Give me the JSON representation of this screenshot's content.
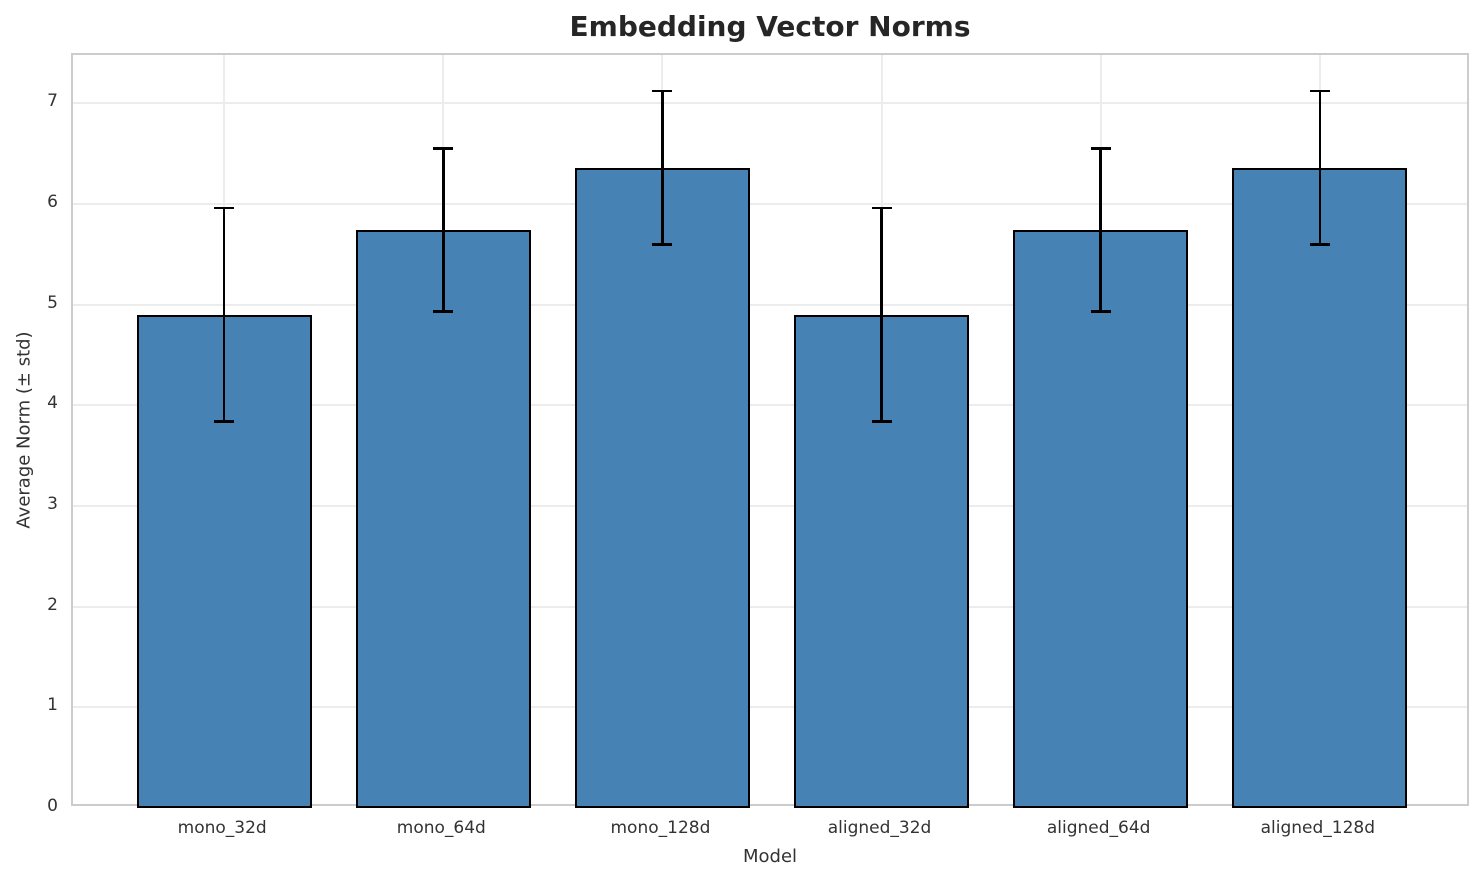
{
  "chart_data": {
    "type": "bar",
    "title": "Embedding Vector Norms",
    "xlabel": "Model",
    "ylabel": "Average Norm (± std)",
    "categories": [
      "mono_32d",
      "mono_64d",
      "mono_128d",
      "aligned_32d",
      "aligned_64d",
      "aligned_128d"
    ],
    "series": [
      {
        "name": "Average Norm",
        "values": [
          4.9,
          5.74,
          6.36,
          4.9,
          5.74,
          6.36
        ],
        "errors": [
          1.06,
          0.81,
          0.76,
          1.06,
          0.81,
          0.76
        ]
      }
    ],
    "y_ticks": [
      0,
      1,
      2,
      3,
      4,
      5,
      6,
      7
    ],
    "ylim": [
      0,
      7.48
    ],
    "grid": true,
    "legend": "none",
    "colors": {
      "bar_fill": "#4682b4",
      "bar_edge": "#000000",
      "error_bar": "#000000",
      "grid_line": "#ececec",
      "spine": "#cccccc",
      "title_text": "#262626",
      "label_text": "#333333"
    }
  }
}
